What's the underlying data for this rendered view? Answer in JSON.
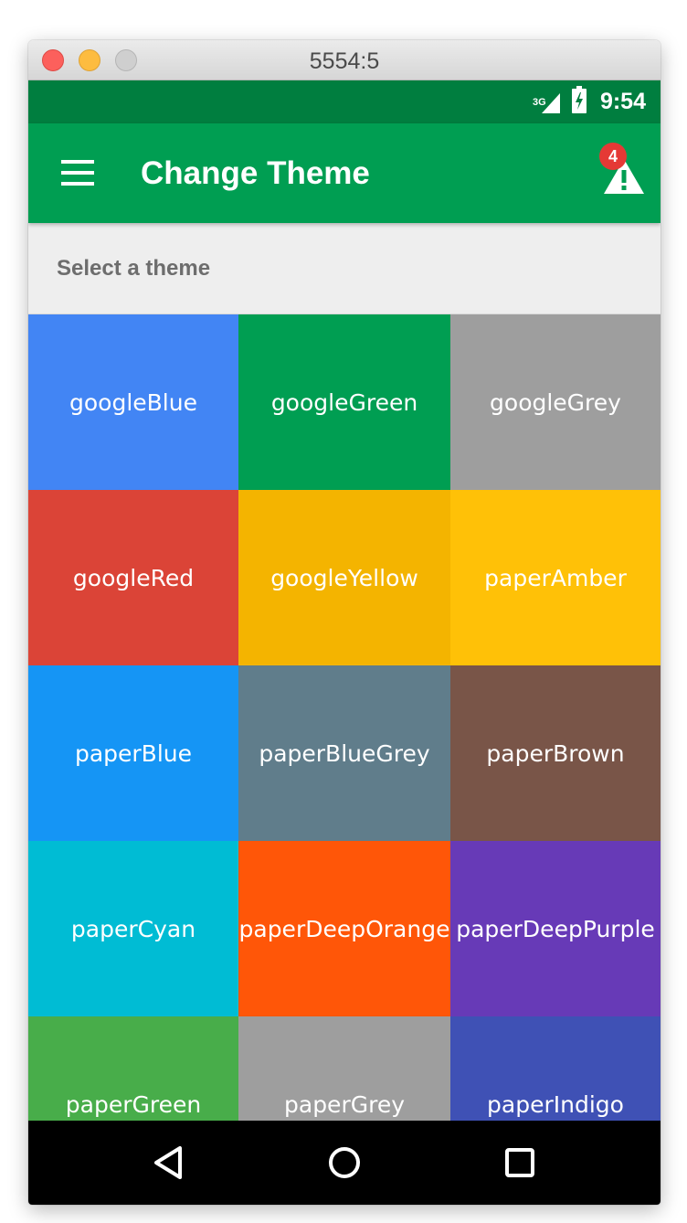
{
  "window": {
    "title": "5554:5"
  },
  "status_bar": {
    "network": "3G",
    "time": "9:54",
    "icons": [
      "signal-icon",
      "battery-charging-icon"
    ],
    "background": "#007e3f"
  },
  "app_bar": {
    "title": "Change Theme",
    "menu_icon": "hamburger-menu-icon",
    "warning_icon": "warning-icon",
    "badge_count": "4",
    "background": "#009e52",
    "badge_color": "#e53935"
  },
  "section": {
    "label": "Select a theme"
  },
  "themes": [
    {
      "label": "googleBlue",
      "color": "#4285f4"
    },
    {
      "label": "googleGreen",
      "color": "#009e52"
    },
    {
      "label": "googleGrey",
      "color": "#9e9e9e"
    },
    {
      "label": "googleRed",
      "color": "#db4437"
    },
    {
      "label": "googleYellow",
      "color": "#f4b400"
    },
    {
      "label": "paperAmber",
      "color": "#ffc107"
    },
    {
      "label": "paperBlue",
      "color": "#1595f5"
    },
    {
      "label": "paperBlueGrey",
      "color": "#607d8b"
    },
    {
      "label": "paperBrown",
      "color": "#795548"
    },
    {
      "label": "paperCyan",
      "color": "#00bcd4"
    },
    {
      "label": "paperDeepOrange",
      "color": "#ff5608"
    },
    {
      "label": "paperDeepPurple",
      "color": "#673ab7"
    },
    {
      "label": "paperGreen",
      "color": "#48ad4a"
    },
    {
      "label": "paperGrey",
      "color": "#9e9e9e"
    },
    {
      "label": "paperIndigo",
      "color": "#3f51b5"
    }
  ],
  "nav_bar": {
    "buttons": [
      "back-icon",
      "home-icon",
      "recents-icon"
    ]
  }
}
